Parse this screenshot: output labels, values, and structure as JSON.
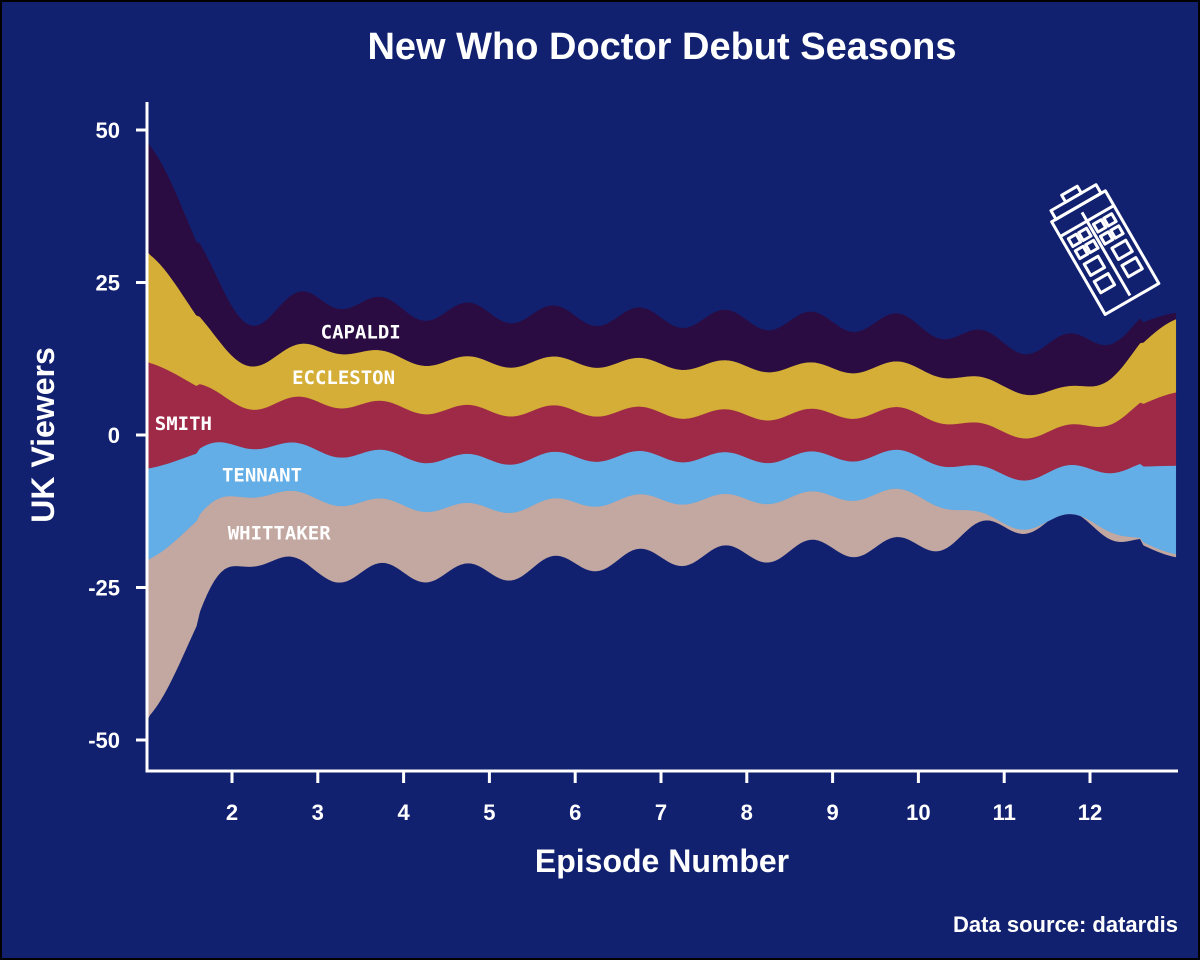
{
  "chart_data": {
    "type": "area",
    "subtype": "streamgraph",
    "title": "New Who Doctor Debut Seasons",
    "xlabel": "Episode Number",
    "ylabel": "UK Viewers",
    "source": "Data source: datardis",
    "x_ticks": [
      2,
      3,
      4,
      5,
      6,
      7,
      8,
      9,
      10,
      11,
      12
    ],
    "y_ticks": [
      50,
      25,
      0,
      -25,
      -50
    ],
    "xlim": [
      1,
      13
    ],
    "ylim": [
      -55,
      55
    ],
    "legend": "inline labels",
    "grid": false,
    "x": [
      1,
      2,
      3,
      4,
      5,
      6,
      7,
      8,
      9,
      10,
      11,
      12,
      13
    ],
    "series": [
      {
        "name": "WHITTAKER",
        "color": "#c3a7a1",
        "values": [
          26,
          11.5,
          12,
          11,
          10.5,
          10,
          9.5,
          9,
          8.5,
          8,
          0.5,
          0.5,
          0.5
        ]
      },
      {
        "name": "TENNANT",
        "color": "#63aee6",
        "values": [
          15,
          8.5,
          8,
          8,
          8,
          7.5,
          7,
          6.8,
          6.5,
          6.5,
          8,
          8.5,
          14.5
        ]
      },
      {
        "name": "SMITH",
        "color": "#9e2a47",
        "values": [
          17.5,
          7,
          8,
          8,
          8,
          7.5,
          7.2,
          7,
          7,
          7,
          7,
          7,
          12
        ]
      },
      {
        "name": "ECCLESTON",
        "color": "#d4ae36",
        "values": [
          18,
          7.5,
          9,
          8,
          8,
          8,
          8,
          8,
          7.5,
          7.5,
          7.5,
          6.5,
          12
        ]
      },
      {
        "name": "CAPALDI",
        "color": "#2a0c42",
        "values": [
          18,
          8,
          8,
          8,
          8,
          7.5,
          7.5,
          7.5,
          7.5,
          7,
          7,
          7.5,
          1
        ]
      }
    ],
    "label_positions": [
      {
        "series": "CAPALDI",
        "x": 3.5,
        "y": 17
      },
      {
        "series": "ECCLESTON",
        "x": 3.3,
        "y": 9.5
      },
      {
        "series": "SMITH",
        "x": 1.1,
        "y": 2
      },
      {
        "series": "TENNANT",
        "x": 2.35,
        "y": -6.5
      },
      {
        "series": "WHITTAKER",
        "x": 2.55,
        "y": -16
      }
    ],
    "baseline": [
      -46.5,
      -21.5,
      -22.5,
      -22.5,
      -22.5,
      -21,
      -20,
      -19.5,
      -18.5,
      -18,
      -15,
      -14.5,
      -20
    ]
  }
}
